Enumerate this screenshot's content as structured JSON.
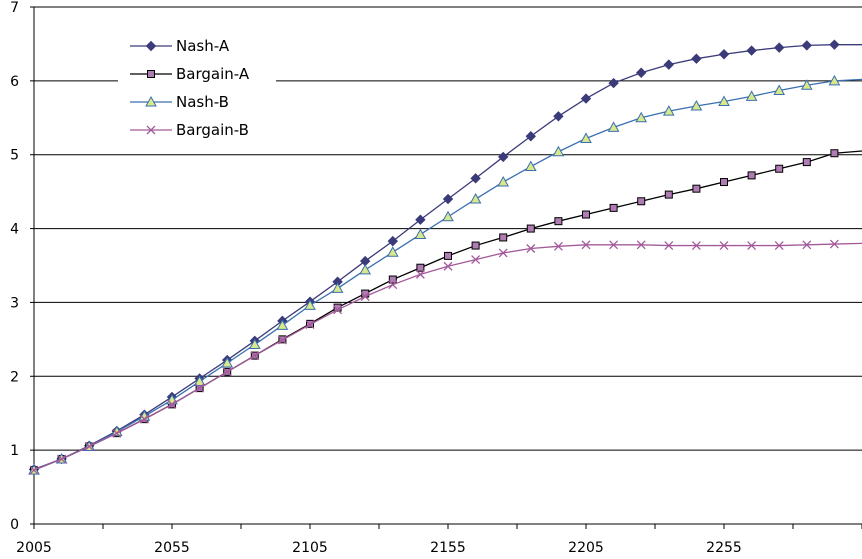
{
  "chart_data": {
    "type": "line",
    "title": "",
    "xlabel": "",
    "ylabel": "",
    "xlim": [
      2005,
      2305
    ],
    "ylim": [
      0,
      7
    ],
    "x_ticks": [
      2005,
      2055,
      2105,
      2155,
      2205,
      2255
    ],
    "y_ticks": [
      0,
      1,
      2,
      3,
      4,
      5,
      6,
      7
    ],
    "grid": "horizontal",
    "legend_position": "top-left",
    "x": [
      2005,
      2015,
      2025,
      2035,
      2045,
      2055,
      2065,
      2075,
      2085,
      2095,
      2105,
      2115,
      2125,
      2135,
      2145,
      2155,
      2165,
      2175,
      2185,
      2195,
      2205,
      2215,
      2225,
      2235,
      2245,
      2255,
      2265,
      2275,
      2285,
      2295,
      2305
    ],
    "series": [
      {
        "name": "Nash-A",
        "color": "#3b3b7a",
        "marker": "diamond",
        "values": [
          0.74,
          0.88,
          1.06,
          1.26,
          1.48,
          1.72,
          1.97,
          2.22,
          2.48,
          2.75,
          3.01,
          3.28,
          3.56,
          3.83,
          4.12,
          4.4,
          4.68,
          4.97,
          5.25,
          5.52,
          5.76,
          5.97,
          6.11,
          6.22,
          6.3,
          6.36,
          6.41,
          6.45,
          6.48,
          6.49,
          6.49
        ]
      },
      {
        "name": "Bargain-A",
        "color": "#000000",
        "marker": "square",
        "values": [
          0.73,
          0.88,
          1.05,
          1.23,
          1.42,
          1.62,
          1.84,
          2.06,
          2.28,
          2.5,
          2.71,
          2.93,
          3.12,
          3.31,
          3.47,
          3.63,
          3.77,
          3.88,
          4.0,
          4.1,
          4.19,
          4.28,
          4.37,
          4.46,
          4.54,
          4.63,
          4.72,
          4.81,
          4.9,
          5.02,
          5.05
        ]
      },
      {
        "name": "Nash-B",
        "color": "#3a6fb0",
        "marker": "triangle",
        "values": [
          0.73,
          0.88,
          1.05,
          1.25,
          1.46,
          1.68,
          1.93,
          2.18,
          2.43,
          2.69,
          2.96,
          3.19,
          3.44,
          3.68,
          3.92,
          4.16,
          4.4,
          4.63,
          4.84,
          5.04,
          5.22,
          5.37,
          5.5,
          5.59,
          5.66,
          5.72,
          5.79,
          5.87,
          5.94,
          6.0,
          6.02
        ]
      },
      {
        "name": "Bargain-B",
        "color": "#a35a9a",
        "marker": "x",
        "values": [
          0.73,
          0.88,
          1.05,
          1.23,
          1.42,
          1.62,
          1.84,
          2.06,
          2.28,
          2.49,
          2.7,
          2.9,
          3.08,
          3.24,
          3.38,
          3.49,
          3.58,
          3.67,
          3.73,
          3.76,
          3.78,
          3.78,
          3.78,
          3.77,
          3.77,
          3.77,
          3.77,
          3.77,
          3.78,
          3.79,
          3.8
        ]
      }
    ]
  }
}
